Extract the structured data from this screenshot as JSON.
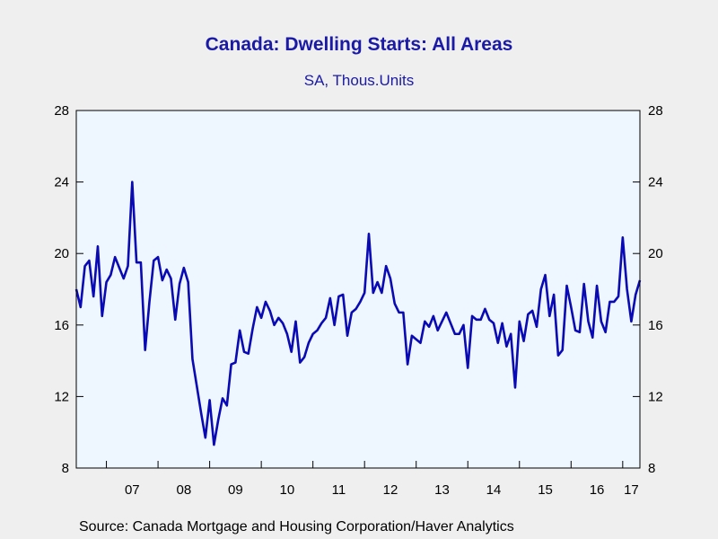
{
  "title": "Canada: Dwelling Starts: All Areas",
  "subtitle": "SA, Thous.Units",
  "source": "Source:  Canada Mortgage and Housing Corporation/Haver Analytics",
  "colors": {
    "line": "#0a0ab4",
    "plot_bg": "#eef6ff",
    "page_bg": "#efefef",
    "title": "#1a1aa6"
  },
  "chart_data": {
    "type": "line",
    "title": "Canada: Dwelling Starts: All Areas",
    "subtitle": "SA, Thous.Units",
    "xlabel": "",
    "ylabel": "",
    "ylim": [
      8,
      28
    ],
    "yticks": [
      8,
      12,
      16,
      20,
      24,
      28
    ],
    "y_tick_labels": [
      "8",
      "12",
      "16",
      "20",
      "24",
      "28"
    ],
    "x_tick_labels": [
      "07",
      "08",
      "09",
      "10",
      "11",
      "12",
      "13",
      "14",
      "15",
      "16",
      "17"
    ],
    "x_start": "2006-06",
    "x_end": "2017-05",
    "grid": false,
    "frequency": "monthly",
    "series": [
      {
        "values": [
          18.0,
          17.0,
          19.3,
          19.6,
          17.6,
          20.4,
          16.5,
          18.4,
          18.8,
          19.8,
          19.2,
          18.6,
          19.3,
          24.0,
          19.5,
          19.5,
          14.6,
          17.3,
          19.6,
          19.8,
          18.5,
          19.1,
          18.6,
          16.3,
          18.3,
          19.2,
          18.4,
          14.1,
          12.6,
          11.1,
          9.7,
          11.8,
          9.3,
          10.7,
          11.9,
          11.5,
          13.8,
          13.9,
          15.7,
          14.5,
          14.4,
          15.8,
          17.0,
          16.4,
          17.3,
          16.8,
          16.0,
          16.4,
          16.1,
          15.5,
          14.5,
          16.2,
          13.9,
          14.2,
          15.0,
          15.5,
          15.7,
          16.1,
          16.4,
          17.5,
          16.0,
          17.6,
          17.7,
          15.4,
          16.7,
          16.9,
          17.3,
          17.8,
          21.1,
          17.8,
          18.4,
          17.8,
          19.3,
          18.6,
          17.2,
          16.7,
          16.7,
          13.8,
          15.4,
          15.2,
          15.0,
          16.2,
          15.9,
          16.5,
          15.7,
          16.2,
          16.7,
          16.1,
          15.5,
          15.5,
          16.0,
          13.6,
          16.5,
          16.3,
          16.3,
          16.9,
          16.3,
          16.1,
          15.0,
          16.1,
          14.8,
          15.5,
          12.5,
          16.2,
          15.1,
          16.6,
          16.8,
          15.9,
          18.0,
          18.8,
          16.5,
          17.7,
          14.3,
          14.6,
          18.2,
          17.0,
          15.7,
          15.6,
          18.3,
          16.2,
          15.3,
          18.2,
          16.2,
          15.6,
          17.3,
          17.3,
          17.6,
          20.9,
          18.0,
          16.2,
          17.7,
          18.5
        ]
      }
    ]
  }
}
